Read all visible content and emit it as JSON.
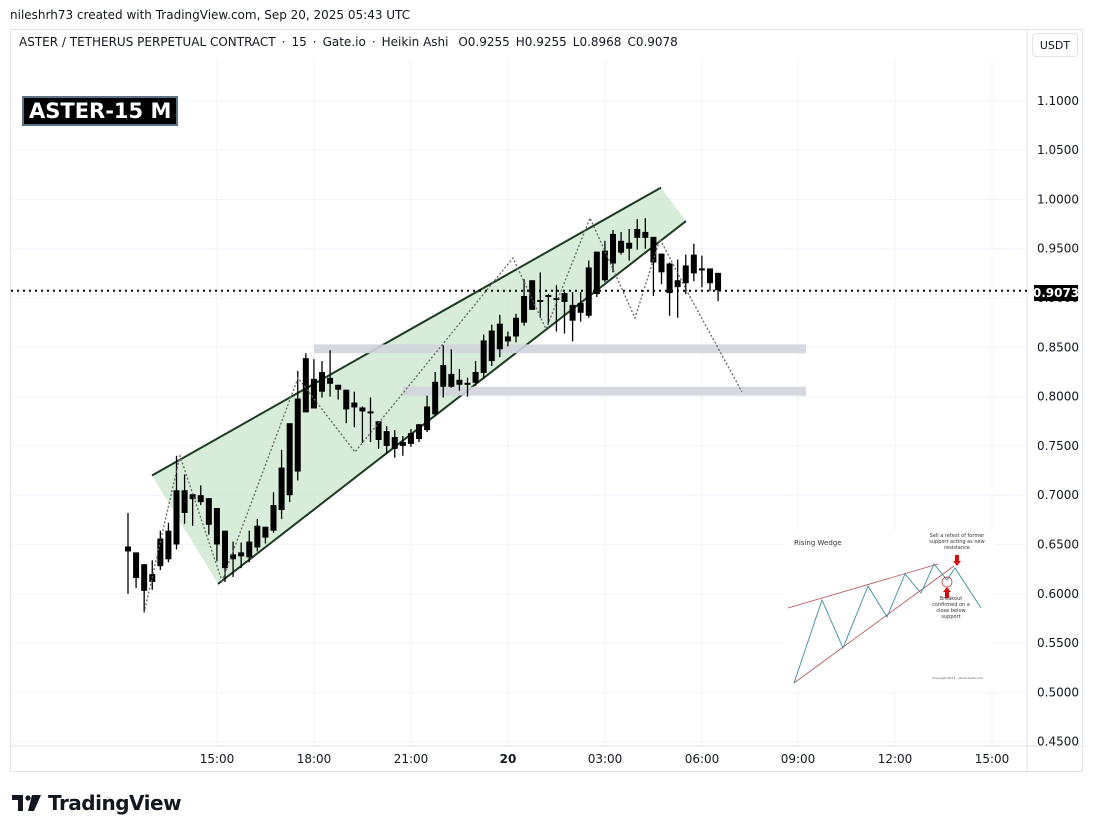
{
  "header": {
    "credit": "nileshrh73 created with TradingView.com, Sep 20, 2025 05:43 UTC"
  },
  "legend": {
    "symbol": "ASTER / TETHERUS PERPETUAL CONTRACT",
    "interval": "15",
    "exchange": "Gate.io",
    "chart_type": "Heikin Ashi",
    "open": "O0.9255",
    "high": "H0.9255",
    "low": "L0.8968",
    "close": "C0.9078"
  },
  "currency_button": "USDT",
  "label_box": "ASTER-15 M",
  "last_price": "0.9073",
  "footer": {
    "logo_text": "TradingView"
  },
  "inset": {
    "title": "Rising Wedge",
    "note_top": "Sell a retest of former support acting as new resistance",
    "note_bottom": "Breakout confirmed on a close below support",
    "copyright": "Copyright 2013 - stockcharts.com"
  },
  "colors": {
    "candle": "#000000",
    "wedge_fill": "#c8e6c9",
    "wedge_line": "#1b3a1f",
    "zone": "#d1d4dc",
    "grid": "#f0f3fa",
    "last_price_line": "#000000"
  },
  "chart_data": {
    "type": "candlestick",
    "title": "ASTER / TETHERUS PERPETUAL CONTRACT · 15 · Gate.io · Heikin Ashi",
    "xlabel": "",
    "ylabel": "USDT",
    "ylim": [
      0.45,
      1.1
    ],
    "grid": true,
    "y_ticks": [
      "1.1000",
      "1.0500",
      "1.0000",
      "0.9500",
      "0.9000",
      "0.8500",
      "0.8000",
      "0.7500",
      "0.7000",
      "0.6500",
      "0.6000",
      "0.5500",
      "0.5000",
      "0.4500"
    ],
    "x_ticks": [
      "15:00",
      "18:00",
      "21:00",
      "20",
      "03:00",
      "06:00",
      "09:00",
      "12:00",
      "15:00"
    ],
    "candles": [
      {
        "o": 0.648,
        "h": 0.682,
        "l": 0.6,
        "c": 0.643
      },
      {
        "o": 0.642,
        "h": 0.642,
        "l": 0.606,
        "c": 0.616
      },
      {
        "o": 0.63,
        "h": 0.63,
        "l": 0.582,
        "c": 0.603
      },
      {
        "o": 0.62,
        "h": 0.634,
        "l": 0.604,
        "c": 0.612
      },
      {
        "o": 0.628,
        "h": 0.664,
        "l": 0.624,
        "c": 0.656
      },
      {
        "o": 0.635,
        "h": 0.672,
        "l": 0.632,
        "c": 0.664
      },
      {
        "o": 0.65,
        "h": 0.74,
        "l": 0.645,
        "c": 0.705
      },
      {
        "o": 0.682,
        "h": 0.721,
        "l": 0.671,
        "c": 0.705
      },
      {
        "o": 0.696,
        "h": 0.699,
        "l": 0.669,
        "c": 0.701
      },
      {
        "o": 0.7,
        "h": 0.71,
        "l": 0.69,
        "c": 0.693
      },
      {
        "o": 0.697,
        "h": 0.697,
        "l": 0.66,
        "c": 0.67
      },
      {
        "o": 0.687,
        "h": 0.687,
        "l": 0.633,
        "c": 0.65
      },
      {
        "o": 0.664,
        "h": 0.664,
        "l": 0.612,
        "c": 0.626
      },
      {
        "o": 0.64,
        "h": 0.653,
        "l": 0.617,
        "c": 0.635
      },
      {
        "o": 0.642,
        "h": 0.652,
        "l": 0.626,
        "c": 0.638
      },
      {
        "o": 0.637,
        "h": 0.664,
        "l": 0.632,
        "c": 0.653
      },
      {
        "o": 0.647,
        "h": 0.676,
        "l": 0.643,
        "c": 0.669
      },
      {
        "o": 0.657,
        "h": 0.667,
        "l": 0.651,
        "c": 0.668
      },
      {
        "o": 0.664,
        "h": 0.703,
        "l": 0.662,
        "c": 0.69
      },
      {
        "o": 0.685,
        "h": 0.746,
        "l": 0.676,
        "c": 0.728
      },
      {
        "o": 0.7,
        "h": 0.768,
        "l": 0.693,
        "c": 0.773
      },
      {
        "o": 0.724,
        "h": 0.826,
        "l": 0.715,
        "c": 0.798
      },
      {
        "o": 0.784,
        "h": 0.844,
        "l": 0.784,
        "c": 0.839
      },
      {
        "o": 0.788,
        "h": 0.838,
        "l": 0.788,
        "c": 0.818
      },
      {
        "o": 0.805,
        "h": 0.836,
        "l": 0.799,
        "c": 0.825
      },
      {
        "o": 0.819,
        "h": 0.847,
        "l": 0.8,
        "c": 0.813
      },
      {
        "o": 0.812,
        "h": 0.804,
        "l": 0.797,
        "c": 0.807
      },
      {
        "o": 0.807,
        "h": 0.806,
        "l": 0.773,
        "c": 0.787
      },
      {
        "o": 0.794,
        "h": 0.805,
        "l": 0.769,
        "c": 0.789
      },
      {
        "o": 0.789,
        "h": 0.79,
        "l": 0.753,
        "c": 0.785
      },
      {
        "o": 0.785,
        "h": 0.799,
        "l": 0.754,
        "c": 0.783
      },
      {
        "o": 0.775,
        "h": 0.775,
        "l": 0.747,
        "c": 0.756
      },
      {
        "o": 0.765,
        "h": 0.77,
        "l": 0.742,
        "c": 0.75
      },
      {
        "o": 0.759,
        "h": 0.766,
        "l": 0.738,
        "c": 0.747
      },
      {
        "o": 0.754,
        "h": 0.76,
        "l": 0.74,
        "c": 0.75
      },
      {
        "o": 0.752,
        "h": 0.767,
        "l": 0.749,
        "c": 0.763
      },
      {
        "o": 0.757,
        "h": 0.77,
        "l": 0.754,
        "c": 0.772
      },
      {
        "o": 0.766,
        "h": 0.801,
        "l": 0.764,
        "c": 0.79
      },
      {
        "o": 0.782,
        "h": 0.825,
        "l": 0.78,
        "c": 0.815
      },
      {
        "o": 0.81,
        "h": 0.852,
        "l": 0.799,
        "c": 0.832
      },
      {
        "o": 0.81,
        "h": 0.848,
        "l": 0.809,
        "c": 0.823
      },
      {
        "o": 0.817,
        "h": 0.828,
        "l": 0.806,
        "c": 0.812
      },
      {
        "o": 0.814,
        "h": 0.819,
        "l": 0.8,
        "c": 0.812
      },
      {
        "o": 0.814,
        "h": 0.836,
        "l": 0.811,
        "c": 0.825
      },
      {
        "o": 0.824,
        "h": 0.863,
        "l": 0.818,
        "c": 0.857
      },
      {
        "o": 0.836,
        "h": 0.873,
        "l": 0.831,
        "c": 0.867
      },
      {
        "o": 0.848,
        "h": 0.883,
        "l": 0.84,
        "c": 0.874
      },
      {
        "o": 0.861,
        "h": 0.866,
        "l": 0.851,
        "c": 0.856
      },
      {
        "o": 0.861,
        "h": 0.884,
        "l": 0.855,
        "c": 0.88
      },
      {
        "o": 0.875,
        "h": 0.919,
        "l": 0.872,
        "c": 0.902
      },
      {
        "o": 0.888,
        "h": 0.915,
        "l": 0.888,
        "c": 0.918
      },
      {
        "o": 0.898,
        "h": 0.926,
        "l": 0.88,
        "c": 0.896
      },
      {
        "o": 0.901,
        "h": 0.904,
        "l": 0.873,
        "c": 0.903
      },
      {
        "o": 0.899,
        "h": 0.913,
        "l": 0.866,
        "c": 0.9
      },
      {
        "o": 0.905,
        "h": 0.906,
        "l": 0.864,
        "c": 0.896
      },
      {
        "o": 0.893,
        "h": 0.906,
        "l": 0.856,
        "c": 0.877
      },
      {
        "o": 0.885,
        "h": 0.906,
        "l": 0.876,
        "c": 0.895
      },
      {
        "o": 0.882,
        "h": 0.938,
        "l": 0.88,
        "c": 0.931
      },
      {
        "o": 0.904,
        "h": 0.943,
        "l": 0.901,
        "c": 0.947
      },
      {
        "o": 0.918,
        "h": 0.958,
        "l": 0.916,
        "c": 0.948
      },
      {
        "o": 0.935,
        "h": 0.969,
        "l": 0.926,
        "c": 0.965
      },
      {
        "o": 0.946,
        "h": 0.967,
        "l": 0.944,
        "c": 0.958
      },
      {
        "o": 0.95,
        "h": 0.97,
        "l": 0.938,
        "c": 0.956
      },
      {
        "o": 0.961,
        "h": 0.98,
        "l": 0.949,
        "c": 0.97
      },
      {
        "o": 0.961,
        "h": 0.981,
        "l": 0.95,
        "c": 0.967
      },
      {
        "o": 0.962,
        "h": 0.962,
        "l": 0.902,
        "c": 0.936
      },
      {
        "o": 0.945,
        "h": 0.945,
        "l": 0.914,
        "c": 0.926
      },
      {
        "o": 0.935,
        "h": 0.936,
        "l": 0.882,
        "c": 0.905
      },
      {
        "o": 0.918,
        "h": 0.939,
        "l": 0.88,
        "c": 0.911
      },
      {
        "o": 0.915,
        "h": 0.944,
        "l": 0.904,
        "c": 0.933
      },
      {
        "o": 0.925,
        "h": 0.955,
        "l": 0.917,
        "c": 0.944
      },
      {
        "o": 0.93,
        "h": 0.943,
        "l": 0.911,
        "c": 0.928
      },
      {
        "o": 0.93,
        "h": 0.93,
        "l": 0.907,
        "c": 0.915
      },
      {
        "o": 0.9255,
        "h": 0.9255,
        "l": 0.8968,
        "c": 0.9078
      }
    ],
    "annotations": {
      "rising_wedge_upper": [
        [
          0.72,
          "12:45"
        ],
        [
          1.012,
          "04:45"
        ]
      ],
      "rising_wedge_lower": [
        [
          0.61,
          "15:00"
        ],
        [
          0.978,
          "05:15"
        ]
      ],
      "support_zones": [
        {
          "price_top": 0.853,
          "price_bottom": 0.844,
          "from": "18:00",
          "to": "09:15"
        },
        {
          "price_top": 0.81,
          "price_bottom": 0.801,
          "from": "20:45",
          "to": "09:15"
        }
      ],
      "projection_target": 0.806,
      "last_price_line": 0.9073
    }
  }
}
